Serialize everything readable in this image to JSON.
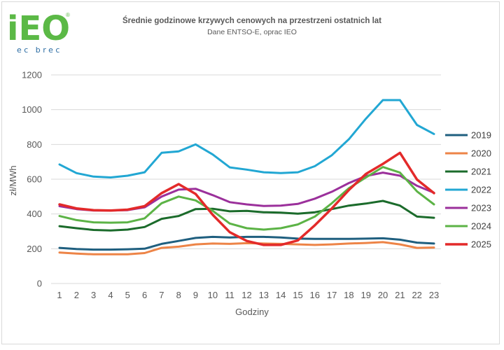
{
  "logo": {
    "text": "iEO",
    "subtext": "ec brec",
    "mark": "®",
    "color_green": "#5bb946",
    "color_blue": "#2b6ca3"
  },
  "chart_data": {
    "type": "line",
    "title": "Średnie godzinowe krzywych cenowych na przestrzeni ostatnich lat",
    "subtitle": "Dane ENTSO-E, oprac IEO",
    "xlabel": "Godziny",
    "ylabel": "zł/MWh",
    "ylim": [
      0,
      1200
    ],
    "yticks": [
      0,
      200,
      400,
      600,
      800,
      1000,
      1200
    ],
    "grid": true,
    "legend_position": "right",
    "x": [
      1,
      2,
      3,
      4,
      5,
      6,
      7,
      8,
      9,
      10,
      11,
      12,
      13,
      14,
      15,
      16,
      17,
      18,
      19,
      20,
      21,
      22,
      23
    ],
    "series": [
      {
        "name": "2019",
        "color": "#1f5f7f",
        "width": 3,
        "values": [
          205,
          198,
          195,
          195,
          197,
          200,
          228,
          245,
          262,
          268,
          265,
          268,
          268,
          265,
          258,
          257,
          257,
          257,
          258,
          260,
          252,
          235,
          230
        ]
      },
      {
        "name": "2020",
        "color": "#ed8447",
        "width": 3,
        "values": [
          178,
          172,
          168,
          168,
          168,
          175,
          205,
          212,
          225,
          230,
          228,
          232,
          230,
          228,
          225,
          222,
          225,
          230,
          233,
          238,
          225,
          205,
          207
        ]
      },
      {
        "name": "2021",
        "color": "#1b6b2b",
        "width": 3,
        "values": [
          330,
          318,
          308,
          305,
          310,
          325,
          372,
          388,
          428,
          430,
          415,
          418,
          410,
          408,
          402,
          410,
          428,
          448,
          460,
          475,
          448,
          385,
          378
        ]
      },
      {
        "name": "2022",
        "color": "#22a7d3",
        "width": 3,
        "values": [
          685,
          635,
          615,
          610,
          620,
          640,
          752,
          760,
          800,
          742,
          668,
          655,
          640,
          635,
          640,
          675,
          738,
          830,
          948,
          1055,
          1055,
          912,
          860
        ]
      },
      {
        "name": "2023",
        "color": "#9b309b",
        "width": 3,
        "values": [
          445,
          428,
          420,
          420,
          422,
          438,
          500,
          540,
          545,
          508,
          468,
          455,
          446,
          448,
          458,
          488,
          528,
          578,
          618,
          638,
          620,
          562,
          522
        ]
      },
      {
        "name": "2024",
        "color": "#5cb346",
        "width": 3,
        "values": [
          388,
          365,
          352,
          350,
          352,
          375,
          462,
          500,
          478,
          418,
          345,
          318,
          310,
          318,
          340,
          385,
          462,
          548,
          610,
          670,
          638,
          530,
          455
        ]
      },
      {
        "name": "2025",
        "color": "#e32a2a",
        "width": 3.5,
        "values": [
          455,
          432,
          422,
          420,
          425,
          445,
          520,
          572,
          515,
          395,
          295,
          245,
          222,
          222,
          248,
          335,
          432,
          538,
          630,
          688,
          752,
          598,
          520
        ]
      }
    ]
  }
}
